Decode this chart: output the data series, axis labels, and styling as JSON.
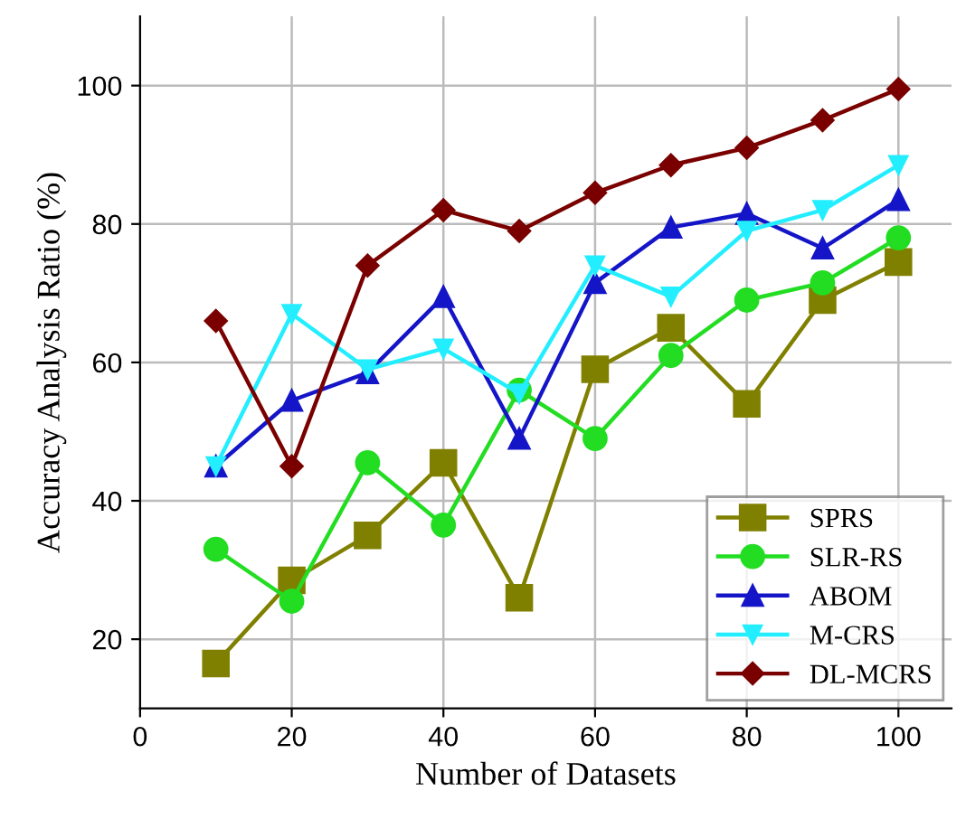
{
  "chart_data": {
    "type": "line",
    "xlabel": "Number of Datasets",
    "ylabel": "Accuracy Analysis Ratio (%)",
    "x": [
      10,
      20,
      30,
      40,
      50,
      60,
      70,
      80,
      90,
      100
    ],
    "series": [
      {
        "name": "SPRS",
        "color": "#808000",
        "marker": "square",
        "values": [
          16.5,
          28.5,
          35,
          45.5,
          26,
          59,
          65,
          54,
          69,
          74.5
        ]
      },
      {
        "name": "SLR-RS",
        "color": "#22dd22",
        "marker": "circle",
        "values": [
          33,
          25.5,
          45.5,
          36.5,
          56,
          49,
          61,
          69,
          71.5,
          78
        ]
      },
      {
        "name": "ABOM",
        "color": "#1515c8",
        "marker": "triangle",
        "values": [
          45,
          54.5,
          58.5,
          69.5,
          49,
          71.5,
          79.5,
          81.5,
          76.5,
          83.5
        ]
      },
      {
        "name": "M-CRS",
        "color": "#22eeff",
        "marker": "triangle_down",
        "values": [
          45,
          67,
          59,
          62,
          55.5,
          74,
          69.5,
          79,
          82,
          88.5
        ]
      },
      {
        "name": "DL-MCRS",
        "color": "#7a0000",
        "marker": "diamond",
        "values": [
          66,
          45,
          74,
          82,
          79,
          84.5,
          88.5,
          91,
          95,
          99.5
        ]
      }
    ],
    "xlim": [
      0,
      107
    ],
    "ylim": [
      10,
      110
    ],
    "xticks": [
      0,
      20,
      40,
      60,
      80,
      100
    ],
    "yticks": [
      20,
      40,
      60,
      80,
      100
    ],
    "grid": true,
    "legend": "bottom right",
    "line_style": "solid"
  }
}
